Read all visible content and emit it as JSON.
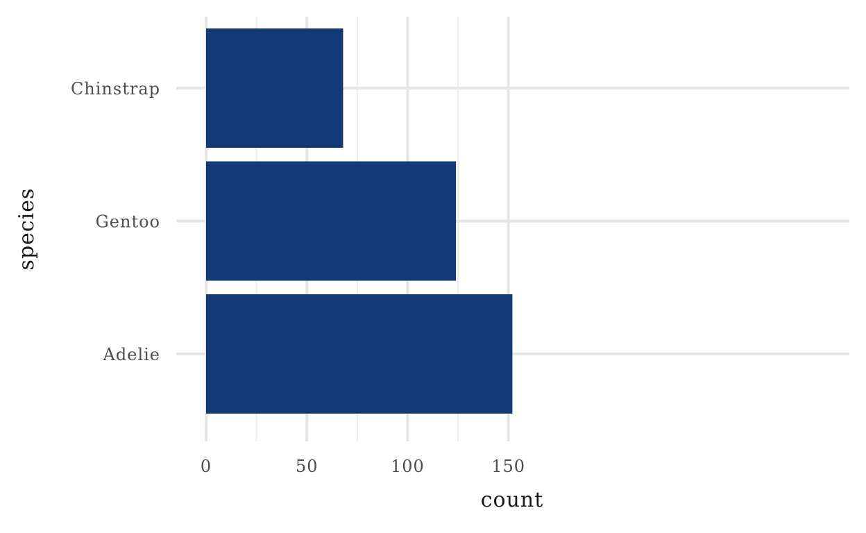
{
  "chart_data": {
    "type": "bar",
    "orientation": "horizontal",
    "categories": [
      "Adelie",
      "Gentoo",
      "Chinstrap"
    ],
    "values": [
      152,
      124,
      68
    ],
    "xlabel": "count",
    "ylabel": "species",
    "xlim": [
      0,
      160
    ],
    "x_ticks": [
      0,
      50,
      100,
      150
    ],
    "x_tick_labels": [
      "0",
      "50",
      "100",
      "150"
    ],
    "grid": true,
    "legend": "none",
    "bar_color": "#123a75",
    "grid_color": "#e6e6e6"
  }
}
